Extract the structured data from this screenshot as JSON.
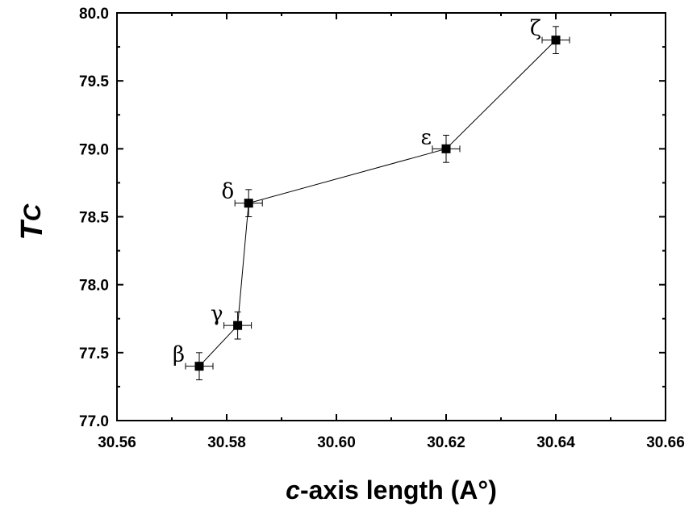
{
  "chart_data": {
    "type": "scatter",
    "title": "",
    "xlabel_italic": "c",
    "xlabel_rest": "-axis length (A°)",
    "ylabel_T": "T",
    "ylabel_sub": "C",
    "xlim": [
      30.56,
      30.66
    ],
    "ylim": [
      77.0,
      80.0
    ],
    "x_ticks": [
      "30.56",
      "30.58",
      "30.60",
      "30.62",
      "30.64",
      "30.66"
    ],
    "y_ticks": [
      "77.0",
      "77.5",
      "78.0",
      "78.5",
      "79.0",
      "79.5",
      "80.0"
    ],
    "grid": false,
    "legend": "none",
    "series": [
      {
        "connected": true,
        "marker": "square",
        "color": "#000000",
        "points": [
          {
            "label": "β",
            "x": 30.575,
            "y": 77.4,
            "xerr": 0.0025,
            "yerr": 0.1
          },
          {
            "label": "γ",
            "x": 30.582,
            "y": 77.7,
            "xerr": 0.0025,
            "yerr": 0.1
          },
          {
            "label": "δ",
            "x": 30.584,
            "y": 78.6,
            "xerr": 0.0025,
            "yerr": 0.1
          },
          {
            "label": "ε",
            "x": 30.62,
            "y": 79.0,
            "xerr": 0.0025,
            "yerr": 0.1
          },
          {
            "label": "ζ",
            "x": 30.64,
            "y": 79.8,
            "xerr": 0.0025,
            "yerr": 0.1
          }
        ]
      }
    ]
  }
}
